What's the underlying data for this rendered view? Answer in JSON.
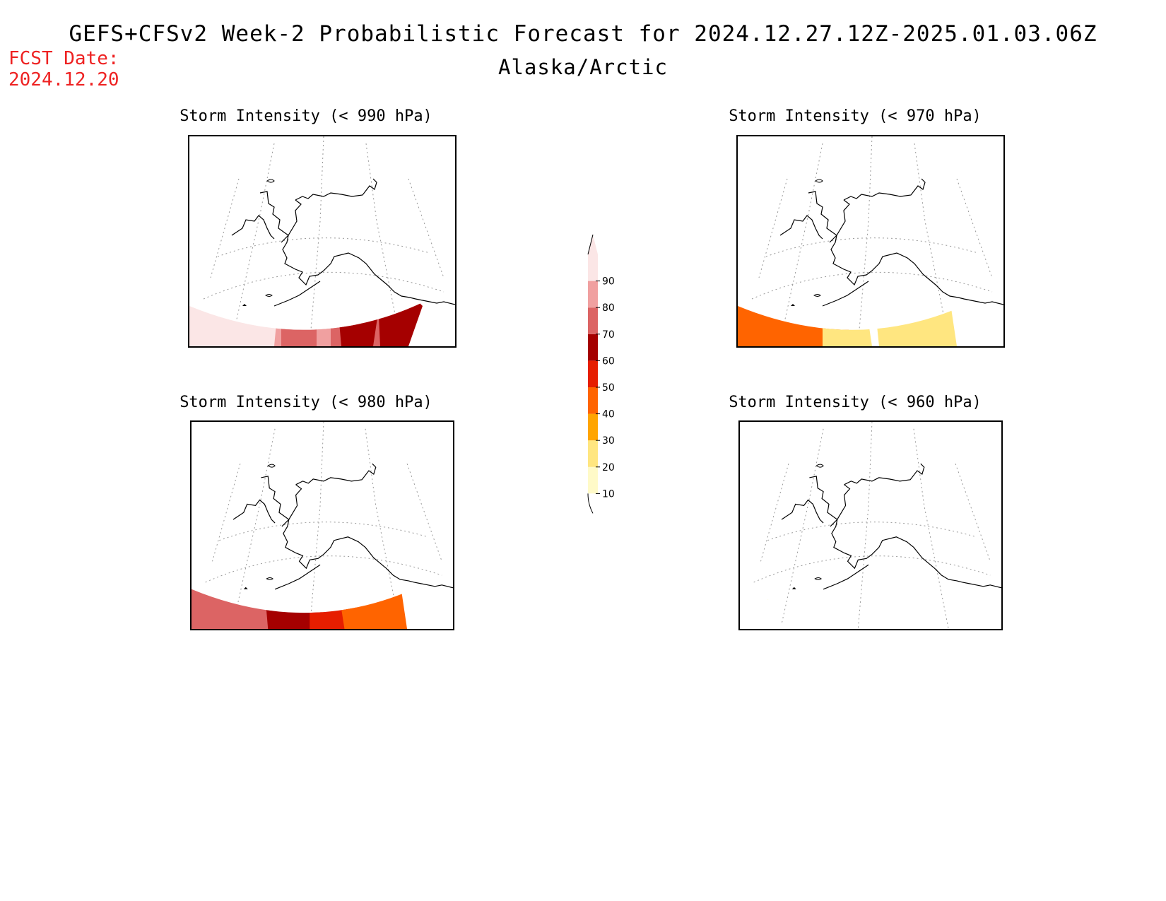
{
  "header": {
    "title": "GEFS+CFSv2 Week-2 Probabilistic Forecast for 2024.12.27.12Z-2025.01.03.06Z",
    "subtitle": "Alaska/Arctic",
    "fcst_label": "FCST Date:",
    "fcst_date": "2024.12.20"
  },
  "panels": [
    {
      "id": "p990",
      "title": "Storm Intensity (< 990 hPa)"
    },
    {
      "id": "p970",
      "title": "Storm Intensity (< 970 hPa)"
    },
    {
      "id": "p980",
      "title": "Storm Intensity (< 980 hPa)"
    },
    {
      "id": "p960",
      "title": "Storm Intensity (< 960 hPa)"
    }
  ],
  "colorbar": {
    "levels": [
      10,
      20,
      30,
      40,
      50,
      60,
      70,
      80,
      90
    ],
    "labels": [
      "10",
      "20",
      "30",
      "40",
      "50",
      "60",
      "70",
      "80",
      "90"
    ],
    "colors": [
      "#fffac8",
      "#ffe680",
      "#ffa500",
      "#ff6400",
      "#e61e00",
      "#a50000",
      "#dc6464",
      "#f0a0a0",
      "#fbe6e6"
    ]
  }
}
